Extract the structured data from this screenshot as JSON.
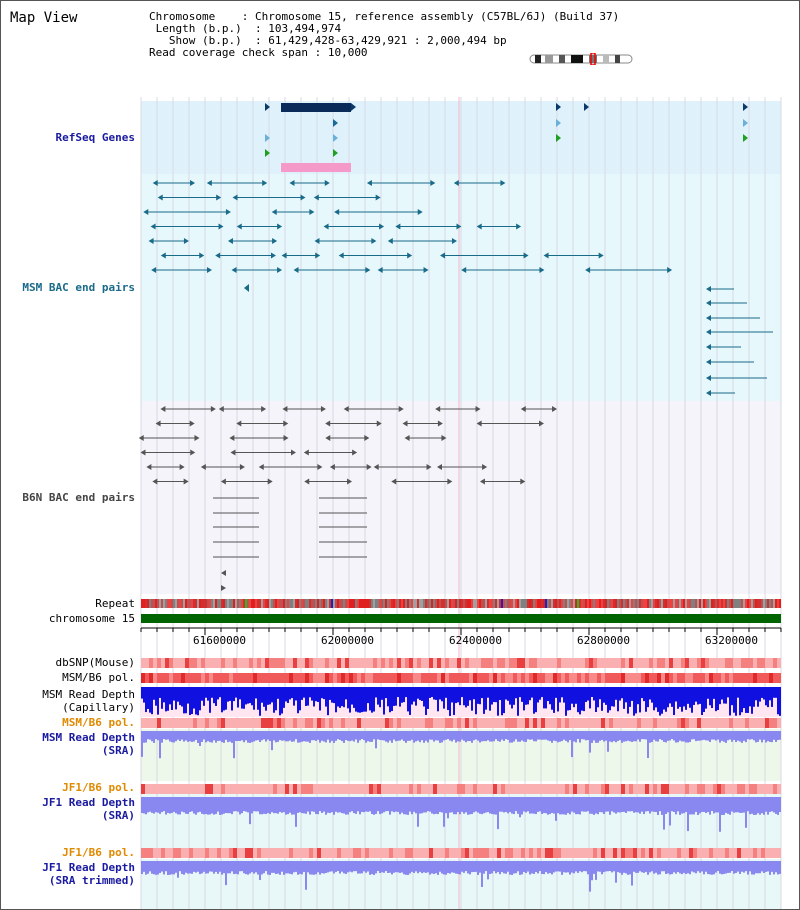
{
  "view_title": "Map View",
  "header": {
    "chromosome_key": "Chromosome",
    "chromosome_value": ": Chromosome 15, reference assembly (C57BL/6J) (Build 37)",
    "length_key": "Length (b.p.)",
    "length_value": ": 103,494,974",
    "show_key": "Show (b.p.)",
    "show_value": ": 61,429,428-63,429,921 : 2,000,494 bp",
    "coverage_key": "Read coverage check span",
    "coverage_value": ": 10,000"
  },
  "tracks": {
    "refseq": {
      "label": "RefSeq Genes",
      "color": "#1a1aa0"
    },
    "msm_bac": {
      "label": "MSM BAC end pairs",
      "color": "#1a6a8a"
    },
    "b6n_bac": {
      "label": "B6N BAC end pairs",
      "color": "#444444"
    },
    "repeat": {
      "label": "Repeat"
    },
    "chromosome": {
      "label": "chromosome 15"
    },
    "dbsnp": {
      "label": "dbSNP(Mouse)"
    },
    "msm_b6_pol": {
      "label": "MSM/B6 pol."
    },
    "msm_depth_cap": {
      "label_line1": "MSM Read Depth",
      "label_line2": "(Capillary)"
    },
    "msm_b6_pol_sra": {
      "label": "MSM/B6 pol.",
      "color": "#e08a00"
    },
    "msm_depth_sra": {
      "label_line1": "MSM Read Depth",
      "label_line2": "(SRA)",
      "color": "#1a1aa0"
    },
    "jf1_b6_pol": {
      "label": "JF1/B6 pol.",
      "color": "#e08a00"
    },
    "jf1_depth_sra": {
      "label_line1": "JF1 Read Depth",
      "label_line2": "(SRA)",
      "color": "#1a1aa0"
    },
    "jf1_b6_pol_trim": {
      "label": "JF1/B6 pol.",
      "color": "#e08a00"
    },
    "jf1_depth_trim": {
      "label_line1": "JF1 Read Depth",
      "label_line2": "(SRA trimmed)",
      "color": "#1a1aa0"
    }
  },
  "axis": {
    "ticks": [
      "61600000",
      "62000000",
      "62400000",
      "62800000",
      "63200000"
    ]
  },
  "colors": {
    "refseq_bg": "#dff2fb",
    "msm_bg": "#e6f8fb",
    "b6n_bg": "#f4f4fa",
    "chromosome_bar": "#006400",
    "gene_dark": "#0a2a5a",
    "gene_highlight": "#f59ac8",
    "depth_blue": "#1010e0",
    "depth_light": "#8080f0"
  }
}
